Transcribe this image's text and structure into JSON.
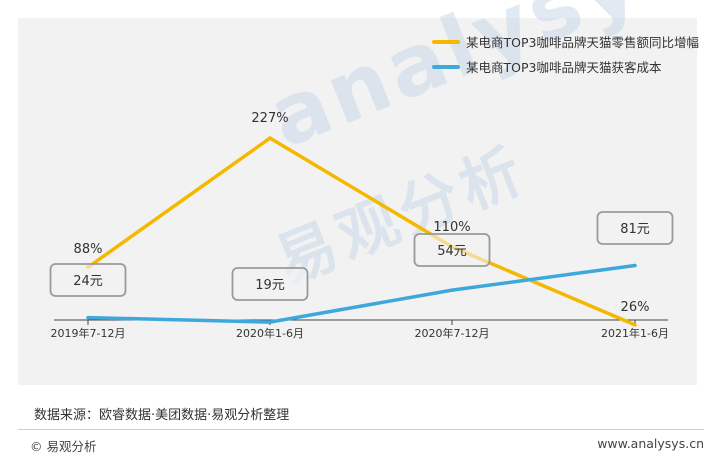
{
  "chart_data": {
    "type": "line",
    "categories": [
      "2019年7-12月",
      "2020年1-6月",
      "2020年7-12月",
      "2021年1-6月"
    ],
    "series": [
      {
        "name": "某电商TOP3咖啡品牌天猫零售额同比增幅",
        "color": "#f5b800",
        "values": [
          88,
          227,
          110,
          26
        ],
        "labels": [
          "88%",
          "227%",
          "110%",
          "26%"
        ]
      },
      {
        "name": "某电商TOP3咖啡品牌天猫获客成本",
        "color": "#3ea8dc",
        "values": [
          24,
          19,
          54,
          81
        ],
        "labels": [
          "24元",
          "19元",
          "54元",
          "81元"
        ]
      }
    ],
    "legend_position": "top-right",
    "grid": false
  },
  "source_text": "数据来源：欧睿数据·美团数据·易观分析整理",
  "footer": {
    "copyright": "© 易观分析",
    "website": "www.analysys.cn"
  },
  "watermark": {
    "latin": "analysys",
    "cjk": "易观分析"
  }
}
